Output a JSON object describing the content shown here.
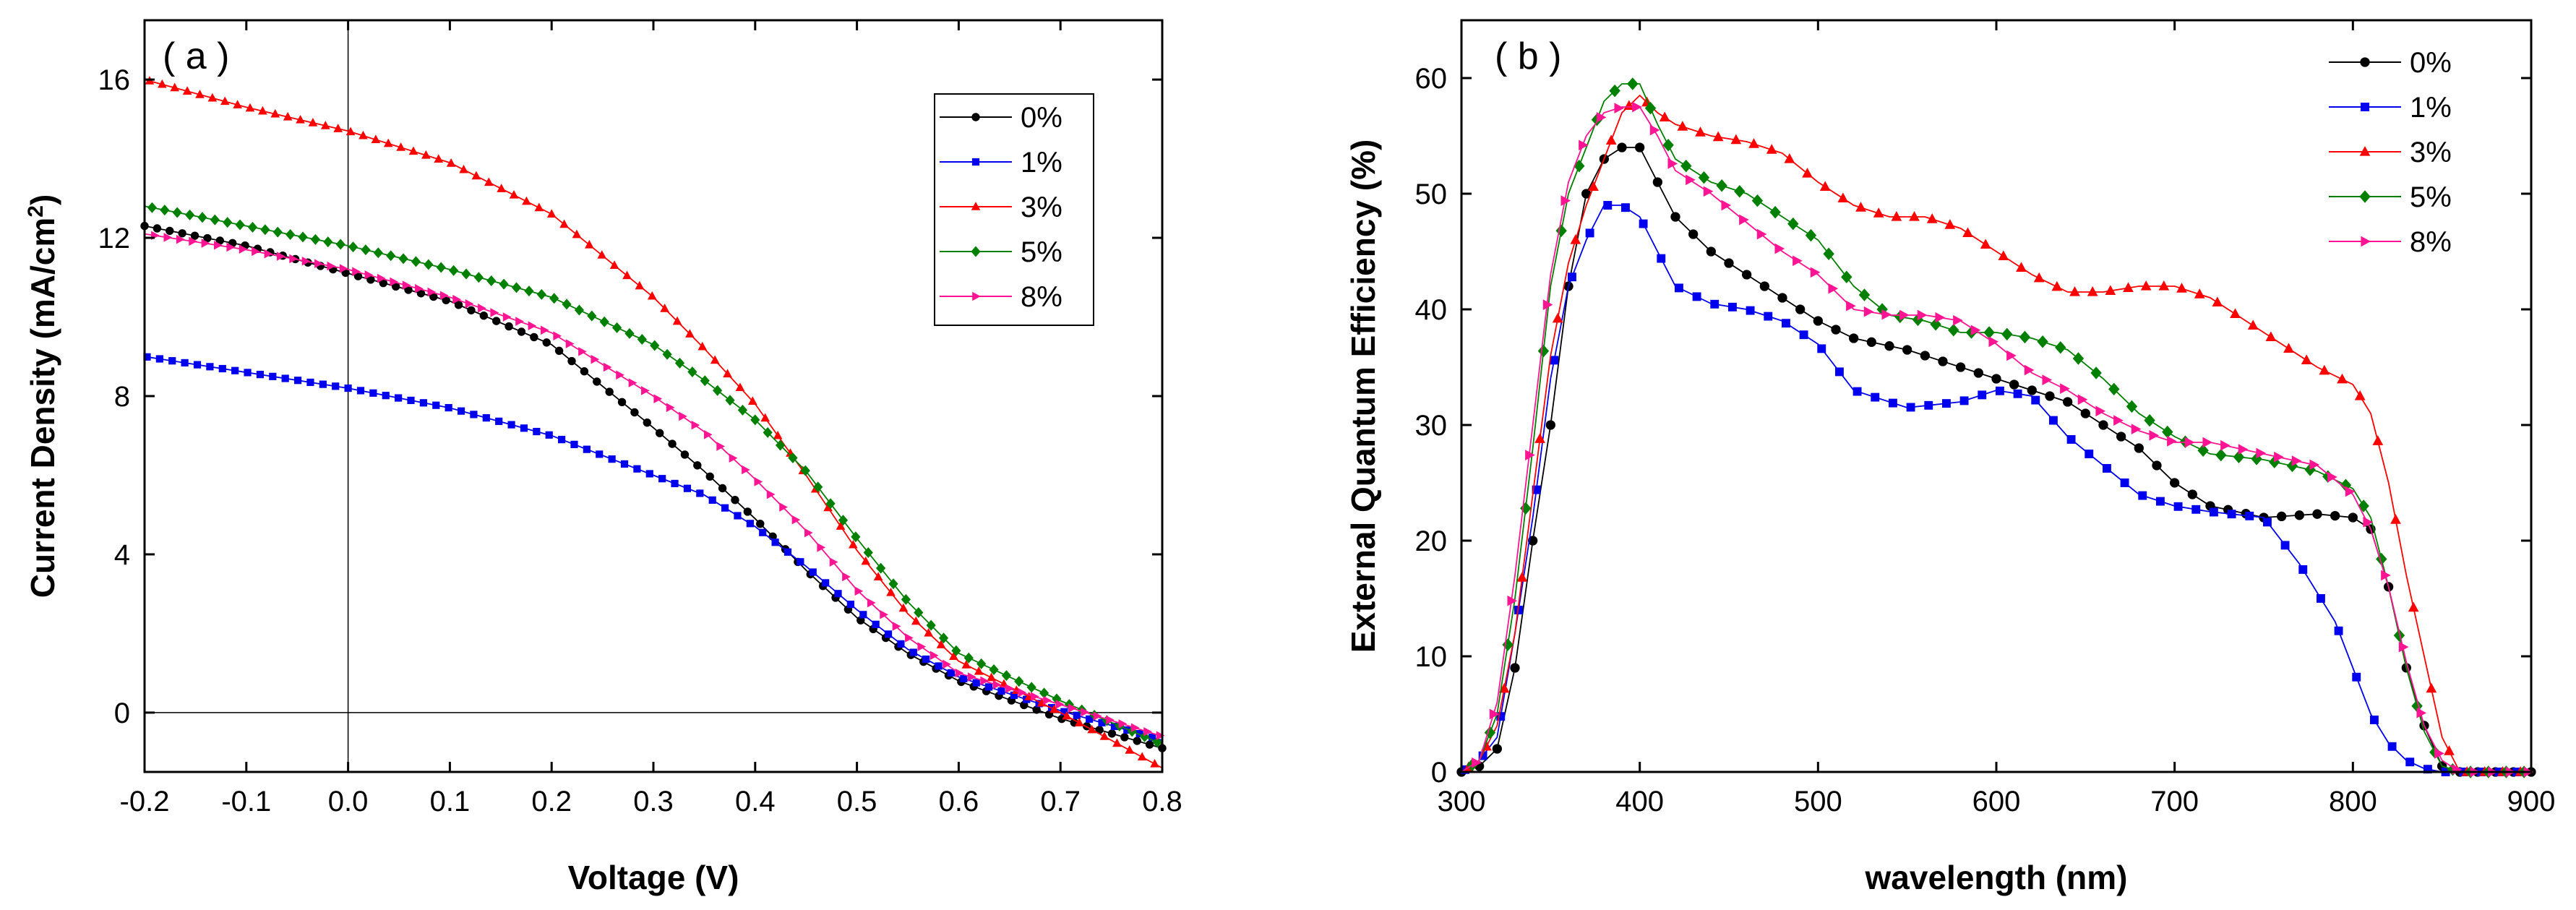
{
  "chart_data": [
    {
      "type": "line",
      "panel_label": "( a )",
      "xlabel": "Voltage (V)",
      "ylabel_main": "Current Density (mA/cm",
      "ylabel_sup": "2",
      "ylabel_end": ")",
      "xlim": [
        -0.2,
        0.8
      ],
      "ylim": [
        -1.5,
        17.5
      ],
      "xticks": [
        -0.2,
        -0.1,
        0.0,
        0.1,
        0.2,
        0.3,
        0.4,
        0.5,
        0.6,
        0.7,
        0.8
      ],
      "xtick_labels": [
        "-0.2",
        "-0.1",
        "0.0",
        "0.1",
        "0.2",
        "0.3",
        "0.4",
        "0.5",
        "0.6",
        "0.7",
        "0.8"
      ],
      "yticks": [
        0,
        4,
        8,
        12,
        16
      ],
      "ytick_labels": [
        "0",
        "4",
        "8",
        "12",
        "16"
      ],
      "reference_lines": {
        "x": 0,
        "y": 0
      },
      "legend_position": "top-right",
      "grid": false,
      "series": [
        {
          "name": "0%",
          "marker": "circle",
          "color": "#000000",
          "x": [
            -0.2,
            -0.1,
            0.0,
            0.1,
            0.2,
            0.3,
            0.35,
            0.4,
            0.45,
            0.5,
            0.55,
            0.6,
            0.7,
            0.8
          ],
          "y": [
            12.3,
            11.8,
            11.1,
            10.4,
            9.3,
            7.2,
            6.1,
            4.9,
            3.6,
            2.4,
            1.5,
            0.8,
            -0.15,
            -0.9
          ]
        },
        {
          "name": "1%",
          "marker": "square",
          "color": "#0000ee",
          "x": [
            -0.2,
            -0.1,
            0.0,
            0.1,
            0.2,
            0.3,
            0.35,
            0.4,
            0.45,
            0.5,
            0.55,
            0.6,
            0.7,
            0.8
          ],
          "y": [
            9.0,
            8.6,
            8.2,
            7.7,
            7.0,
            6.0,
            5.5,
            4.7,
            3.7,
            2.6,
            1.6,
            0.9,
            0.05,
            -0.7
          ]
        },
        {
          "name": "3%",
          "marker": "triangle-up",
          "color": "#ff0000",
          "x": [
            -0.2,
            -0.1,
            0.0,
            0.1,
            0.2,
            0.3,
            0.35,
            0.4,
            0.45,
            0.5,
            0.55,
            0.6,
            0.7,
            0.8
          ],
          "y": [
            16.0,
            15.3,
            14.7,
            13.9,
            12.6,
            10.5,
            9.2,
            7.8,
            6.0,
            4.1,
            2.5,
            1.3,
            0.0,
            -1.4
          ]
        },
        {
          "name": "5%",
          "marker": "diamond",
          "color": "#008000",
          "x": [
            -0.2,
            -0.1,
            0.0,
            0.1,
            0.2,
            0.3,
            0.35,
            0.4,
            0.45,
            0.5,
            0.55,
            0.6,
            0.7,
            0.8
          ],
          "y": [
            12.8,
            12.3,
            11.8,
            11.2,
            10.5,
            9.3,
            8.4,
            7.4,
            6.1,
            4.4,
            2.8,
            1.5,
            0.3,
            -0.8
          ]
        },
        {
          "name": "8%",
          "marker": "triangle-right",
          "color": "#ff1493",
          "x": [
            -0.2,
            -0.1,
            0.0,
            0.1,
            0.2,
            0.3,
            0.35,
            0.4,
            0.45,
            0.5,
            0.55,
            0.6,
            0.7,
            0.8
          ],
          "y": [
            12.1,
            11.7,
            11.2,
            10.5,
            9.6,
            8.0,
            7.1,
            5.9,
            4.6,
            3.1,
            1.9,
            1.0,
            0.2,
            -0.6
          ]
        }
      ]
    },
    {
      "type": "line",
      "panel_label": "( b )",
      "xlabel": "wavelength (nm)",
      "ylabel": "External Quantum Efficiency (%)",
      "xlim": [
        300,
        900
      ],
      "ylim": [
        0,
        65
      ],
      "xticks": [
        300,
        400,
        500,
        600,
        700,
        800,
        900
      ],
      "xtick_labels": [
        "300",
        "400",
        "500",
        "600",
        "700",
        "800",
        "900"
      ],
      "yticks": [
        0,
        10,
        20,
        30,
        40,
        50,
        60
      ],
      "ytick_labels": [
        "0",
        "10",
        "20",
        "30",
        "40",
        "50",
        "60"
      ],
      "legend_position": "top-right",
      "grid": false,
      "series": [
        {
          "name": "0%",
          "marker": "circle",
          "color": "#000000",
          "x": [
            300,
            310,
            320,
            330,
            340,
            350,
            360,
            370,
            380,
            390,
            400,
            410,
            420,
            440,
            460,
            480,
            500,
            520,
            550,
            600,
            640,
            680,
            700,
            720,
            750,
            780,
            800,
            810,
            820,
            830,
            840,
            850,
            860,
            900
          ],
          "y": [
            0,
            0.5,
            2,
            9,
            20,
            30,
            42,
            50,
            53,
            54,
            54,
            51,
            48,
            45,
            43,
            41,
            39,
            37.5,
            36.5,
            34,
            32,
            28,
            25,
            23,
            22,
            22.3,
            22,
            21,
            16,
            9,
            4,
            0.5,
            0,
            0
          ]
        },
        {
          "name": "1%",
          "marker": "square",
          "color": "#0000ee",
          "x": [
            300,
            310,
            320,
            330,
            340,
            350,
            360,
            370,
            380,
            390,
            400,
            410,
            420,
            440,
            460,
            480,
            500,
            520,
            550,
            580,
            600,
            620,
            640,
            680,
            700,
            720,
            750,
            770,
            790,
            800,
            810,
            820,
            830,
            840,
            850,
            860,
            900
          ],
          "y": [
            0,
            1,
            3,
            12,
            22,
            34,
            42,
            46,
            49,
            49,
            48,
            45,
            42,
            40.5,
            40,
            39,
            37,
            33,
            31.5,
            32,
            33,
            32.5,
            29,
            24,
            23,
            22.5,
            22,
            18,
            13,
            9,
            5,
            2.5,
            1,
            0.3,
            0,
            0,
            0
          ]
        },
        {
          "name": "3%",
          "marker": "triangle-up",
          "color": "#ff0000",
          "x": [
            300,
            310,
            320,
            330,
            340,
            350,
            360,
            370,
            380,
            390,
            400,
            410,
            420,
            440,
            460,
            480,
            500,
            520,
            540,
            560,
            580,
            600,
            620,
            640,
            660,
            680,
            700,
            720,
            740,
            760,
            780,
            800,
            810,
            820,
            830,
            840,
            850,
            860,
            900
          ],
          "y": [
            0,
            1,
            4,
            12,
            24,
            36,
            44,
            49,
            53,
            57,
            58.5,
            57,
            56,
            55,
            54.5,
            53.5,
            51,
            49,
            48,
            48,
            47,
            45,
            43,
            41.5,
            41.5,
            42,
            42,
            41,
            39,
            37,
            35,
            33.5,
            31,
            25,
            17,
            10,
            3,
            0,
            0
          ]
        },
        {
          "name": "5%",
          "marker": "diamond",
          "color": "#008000",
          "x": [
            300,
            310,
            320,
            330,
            340,
            350,
            360,
            370,
            380,
            390,
            400,
            410,
            420,
            440,
            460,
            480,
            500,
            520,
            540,
            560,
            580,
            600,
            620,
            640,
            660,
            680,
            700,
            720,
            750,
            780,
            800,
            810,
            820,
            830,
            840,
            850,
            860,
            900
          ],
          "y": [
            0,
            1,
            5,
            15,
            28,
            42,
            50,
            54,
            58,
            59.5,
            59.5,
            56,
            53,
            51,
            50,
            48,
            46,
            42,
            39.5,
            39,
            38,
            38,
            37.5,
            36.5,
            34,
            31,
            29,
            27.5,
            27,
            26,
            24.5,
            22,
            16,
            9,
            3.5,
            0.5,
            0,
            0
          ]
        },
        {
          "name": "8%",
          "marker": "triangle-right",
          "color": "#ff1493",
          "x": [
            300,
            310,
            320,
            330,
            340,
            350,
            360,
            370,
            380,
            390,
            400,
            410,
            420,
            440,
            460,
            480,
            500,
            520,
            540,
            560,
            580,
            600,
            620,
            640,
            660,
            680,
            700,
            720,
            750,
            780,
            800,
            810,
            820,
            830,
            840,
            850,
            860,
            900
          ],
          "y": [
            0,
            1,
            6,
            17,
            30,
            43,
            51,
            55,
            57,
            57.5,
            57.5,
            55,
            52,
            50,
            47.5,
            45,
            43,
            40,
            39.5,
            39.5,
            39,
            37,
            34.5,
            33,
            31,
            29.5,
            28.5,
            28.5,
            27.5,
            26.5,
            24,
            21,
            16,
            9.5,
            4,
            1,
            0,
            0
          ]
        }
      ]
    }
  ]
}
